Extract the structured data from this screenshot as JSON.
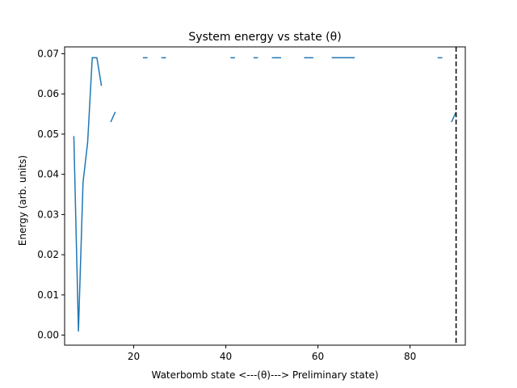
{
  "chart_data": {
    "type": "line",
    "title": "System energy vs state (θ)",
    "xlabel": "Waterbomb state <---(θ)---> Preliminary state)",
    "ylabel": "Energy (arb. units)",
    "xlim": [
      5.0,
      92.0
    ],
    "ylim": [
      -0.0025,
      0.0717
    ],
    "xticks": [
      20,
      40,
      60,
      80
    ],
    "xtick_labels": [
      "20",
      "40",
      "60",
      "80"
    ],
    "yticks": [
      0.0,
      0.01,
      0.02,
      0.03,
      0.04,
      0.05,
      0.06,
      0.07
    ],
    "ytick_labels": [
      "0.00",
      "0.01",
      "0.02",
      "0.03",
      "0.04",
      "0.05",
      "0.06",
      "0.07"
    ],
    "grid": false,
    "series_color": "#1f77b4",
    "segments": [
      {
        "x": [
          7,
          8,
          9,
          10,
          11,
          12,
          13
        ],
        "y": [
          0.0495,
          0.001,
          0.038,
          0.048,
          0.069,
          0.069,
          0.062
        ]
      },
      {
        "x": [
          15,
          16
        ],
        "y": [
          0.053,
          0.0555
        ]
      },
      {
        "x": [
          22,
          23
        ],
        "y": [
          0.069,
          0.069
        ]
      },
      {
        "x": [
          26,
          27
        ],
        "y": [
          0.069,
          0.069
        ]
      },
      {
        "x": [
          41,
          42
        ],
        "y": [
          0.069,
          0.069
        ]
      },
      {
        "x": [
          46,
          47
        ],
        "y": [
          0.069,
          0.069
        ]
      },
      {
        "x": [
          50,
          51,
          52
        ],
        "y": [
          0.069,
          0.069,
          0.069
        ]
      },
      {
        "x": [
          57,
          58,
          59
        ],
        "y": [
          0.069,
          0.069,
          0.069
        ]
      },
      {
        "x": [
          63,
          64,
          65,
          66,
          67,
          68
        ],
        "y": [
          0.069,
          0.069,
          0.069,
          0.069,
          0.069,
          0.069
        ]
      },
      {
        "x": [
          86,
          87
        ],
        "y": [
          0.069,
          0.069
        ]
      },
      {
        "x": [
          89,
          90
        ],
        "y": [
          0.053,
          0.0555
        ]
      }
    ],
    "reference_line": {
      "orientation": "vertical",
      "x": 90,
      "style": "dashed",
      "color": "#000000"
    }
  }
}
